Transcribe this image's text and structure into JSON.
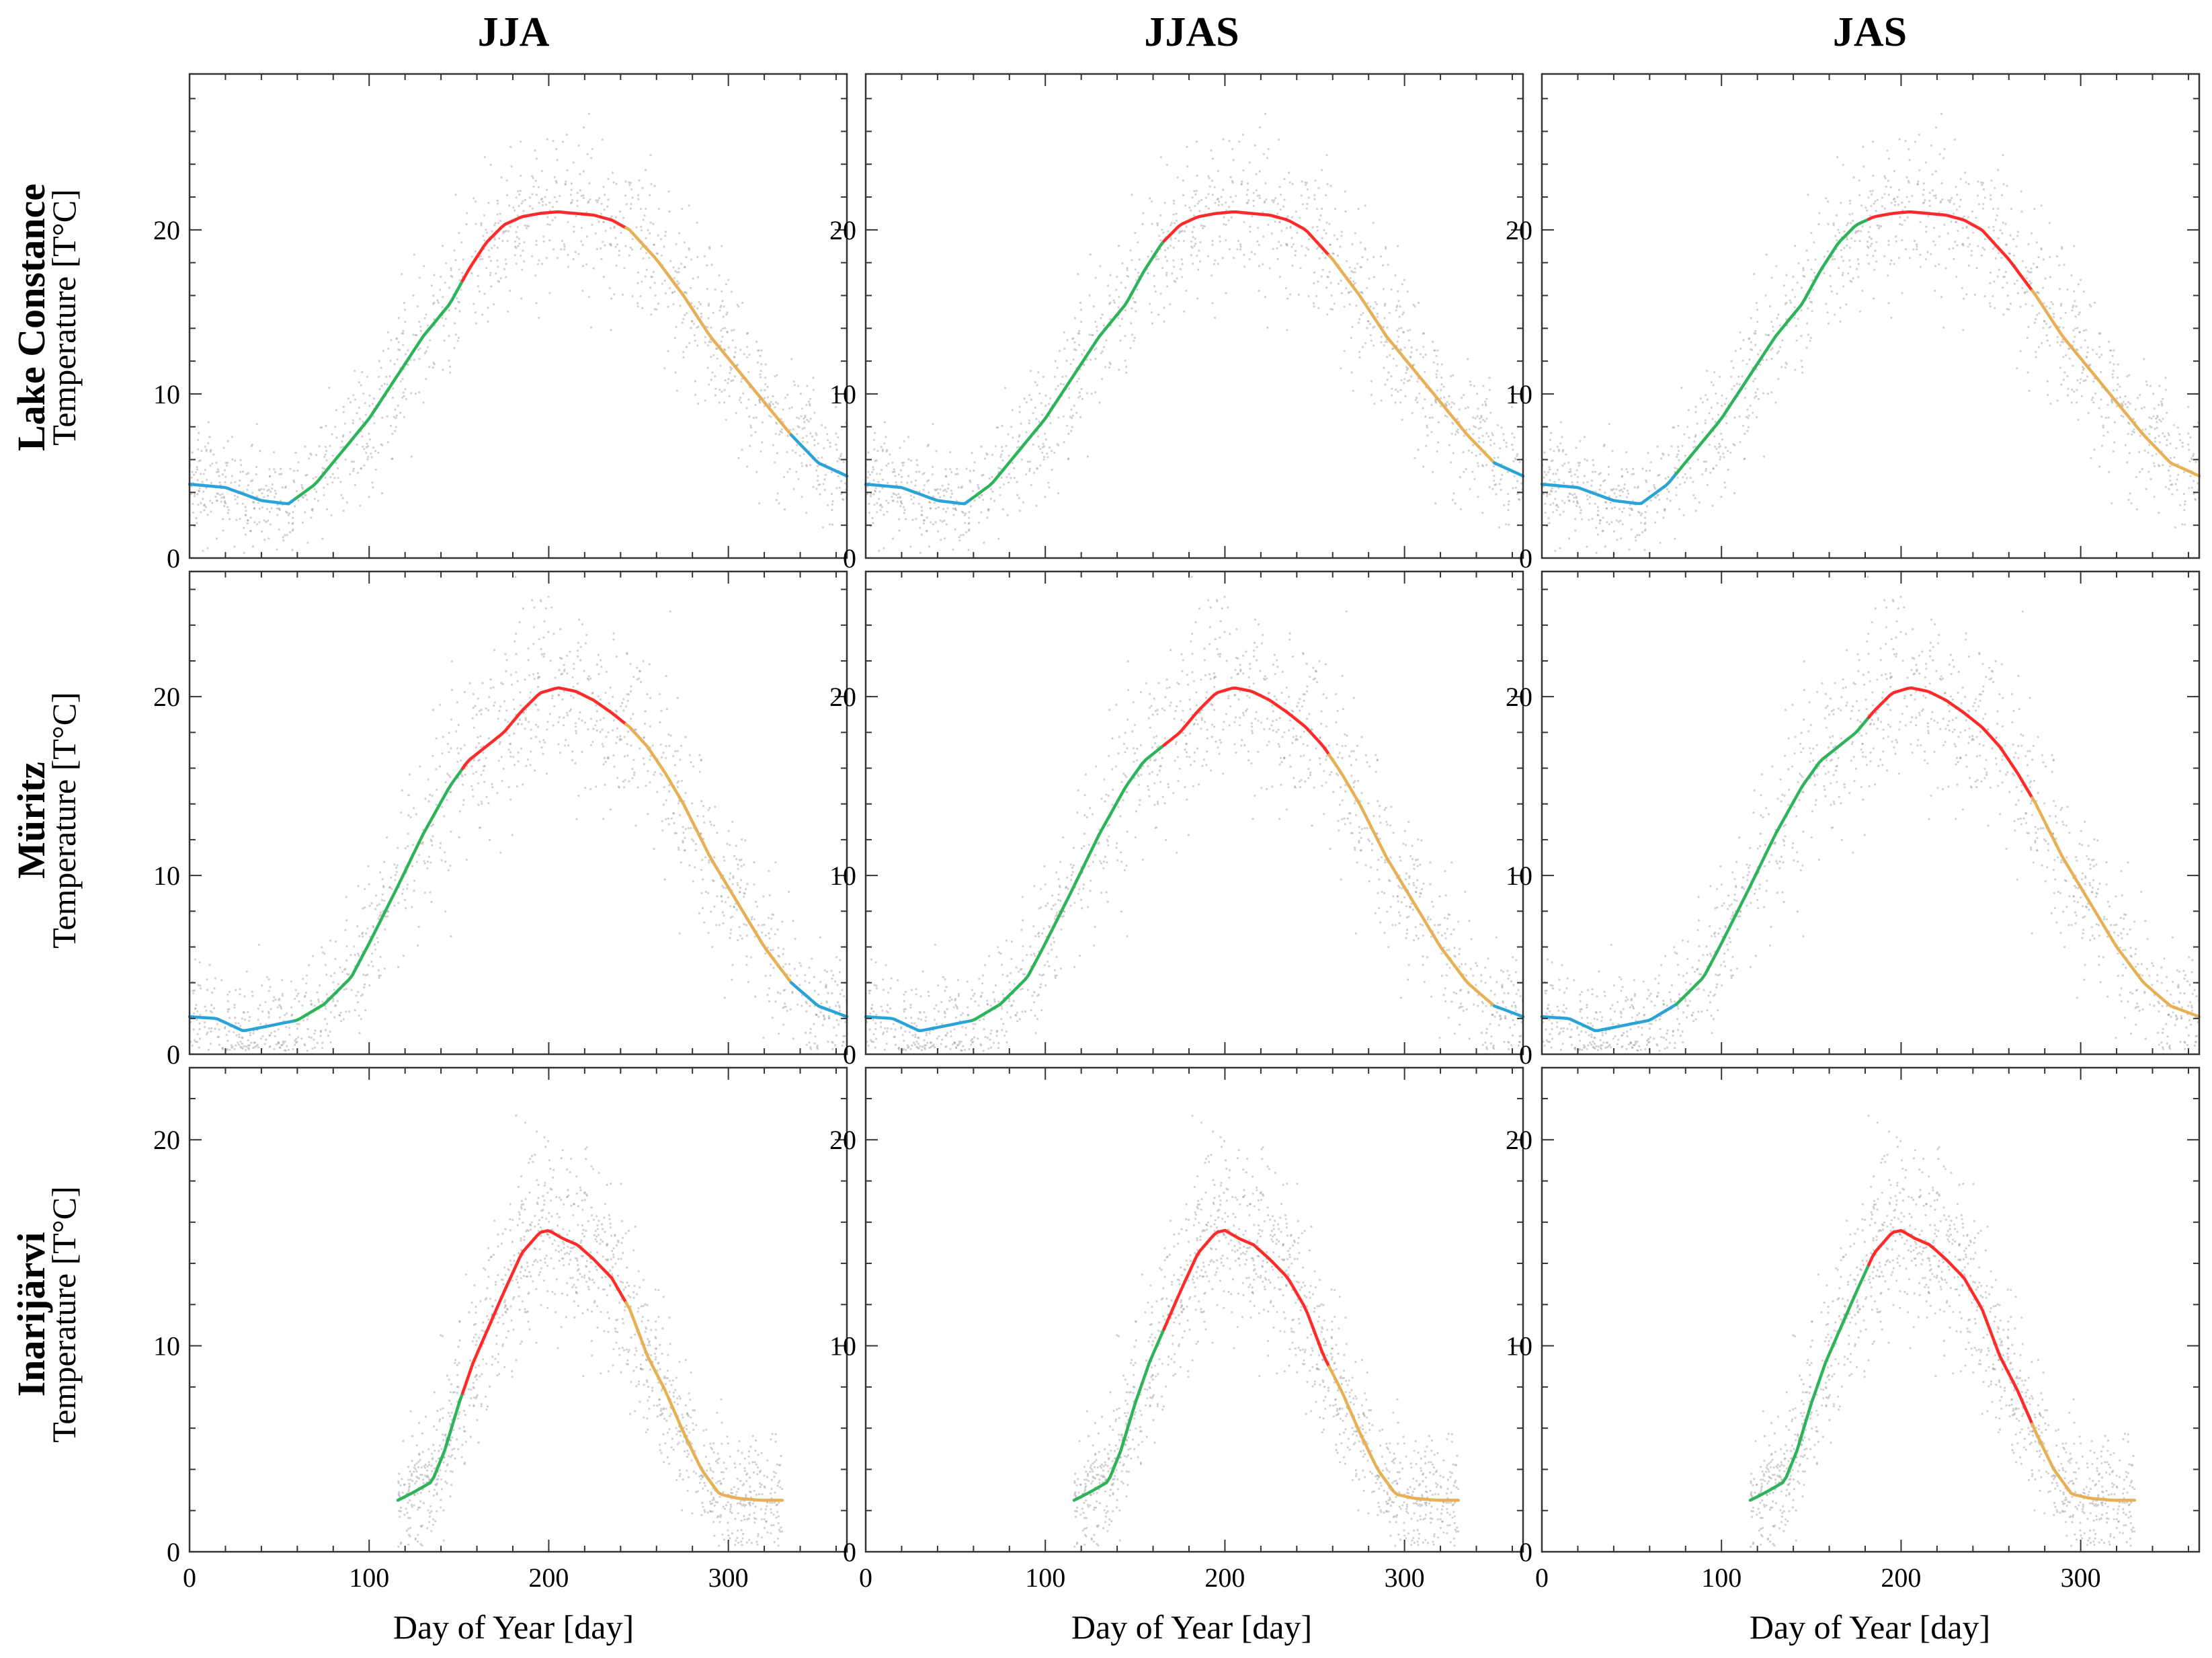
{
  "figure": {
    "column_titles": [
      "JJA",
      "JJAS",
      "JAS"
    ],
    "row_names": [
      "Lake Constance",
      "Müritz",
      "Inarijärvi"
    ],
    "ylabel": "Temperature [T°C]",
    "xlabel": "Day of Year [day]"
  },
  "colors": {
    "spring": "#2db35a",
    "summer": "#ff2a2a",
    "autumn": "#e8b055",
    "winter": "#2aa3d6",
    "scatter": "#9a9a9a"
  },
  "chart_data": {
    "type": "line",
    "note": "3x3 grid of panels: climatological daily lake temperature (scatter of observations in grey) with a smoothed curve colored by season; the summer (red) window differs per column.",
    "xlim": [
      0,
      366
    ],
    "xticks": [
      0,
      100,
      200,
      300
    ],
    "series_colors_by_season": [
      "winter",
      "spring",
      "summer",
      "autumn"
    ],
    "rows": [
      {
        "lake": "Lake Constance",
        "ylim": [
          0,
          29.5
        ],
        "yticks": [
          0,
          10,
          20
        ],
        "curve": {
          "x": [
            0,
            20,
            40,
            55,
            70,
            85,
            100,
            115,
            130,
            145,
            155,
            165,
            175,
            185,
            195,
            205,
            215,
            225,
            235,
            245,
            260,
            275,
            290,
            305,
            320,
            335,
            350,
            366
          ],
          "y": [
            4.5,
            4.3,
            3.5,
            3.3,
            4.5,
            6.5,
            8.5,
            11.0,
            13.5,
            15.5,
            17.5,
            19.2,
            20.3,
            20.8,
            21.0,
            21.1,
            21.0,
            20.9,
            20.6,
            20.0,
            18.2,
            16.0,
            13.5,
            11.5,
            9.5,
            7.5,
            5.8,
            5.0
          ]
        },
        "scatter_spread": 2.3
      },
      {
        "lake": "Müritz",
        "ylim": [
          0,
          27.0
        ],
        "yticks": [
          0,
          10,
          20
        ],
        "curve": {
          "x": [
            0,
            15,
            30,
            45,
            60,
            75,
            90,
            100,
            115,
            130,
            145,
            155,
            165,
            175,
            185,
            195,
            205,
            215,
            225,
            235,
            245,
            255,
            265,
            275,
            290,
            305,
            320,
            335,
            350,
            366
          ],
          "y": [
            2.1,
            2.0,
            1.3,
            1.6,
            1.9,
            2.8,
            4.3,
            6.2,
            9.2,
            12.3,
            15.0,
            16.4,
            17.2,
            18.0,
            19.2,
            20.2,
            20.5,
            20.3,
            19.8,
            19.1,
            18.3,
            17.2,
            15.7,
            14.0,
            11.0,
            8.5,
            6.0,
            4.0,
            2.7,
            2.1
          ]
        },
        "scatter_spread": 2.5
      },
      {
        "lake": "Inarijärvi",
        "ylim": [
          0,
          23.5
        ],
        "yticks": [
          0,
          10,
          20
        ],
        "curve": {
          "x": [
            116,
            125,
            135,
            142,
            150,
            158,
            166,
            175,
            185,
            195,
            200,
            208,
            216,
            225,
            235,
            245,
            255,
            265,
            275,
            285,
            295,
            305,
            318,
            330
          ],
          "y": [
            2.5,
            2.9,
            3.4,
            4.9,
            7.2,
            9.2,
            10.8,
            12.6,
            14.5,
            15.5,
            15.6,
            15.2,
            14.9,
            14.2,
            13.3,
            11.8,
            9.5,
            7.8,
            5.8,
            4.0,
            2.8,
            2.6,
            2.5,
            2.5
          ]
        },
        "scatter_spread": 2.2
      }
    ],
    "columns": [
      {
        "title": "JJA",
        "season_bounds": [
          {
            "season": "winter",
            "from": 0,
            "to": 59
          },
          {
            "season": "spring",
            "from": 59,
            "to": 152
          },
          {
            "season": "summer",
            "from": 152,
            "to": 243
          },
          {
            "season": "autumn",
            "from": 243,
            "to": 335
          },
          {
            "season": "winter",
            "from": 335,
            "to": 366
          }
        ]
      },
      {
        "title": "JJAS",
        "season_bounds": [
          {
            "season": "winter",
            "from": 0,
            "to": 59
          },
          {
            "season": "spring",
            "from": 59,
            "to": 166
          },
          {
            "season": "summer",
            "from": 166,
            "to": 258
          },
          {
            "season": "autumn",
            "from": 258,
            "to": 350
          },
          {
            "season": "winter",
            "from": 350,
            "to": 366
          }
        ]
      },
      {
        "title": "JAS",
        "season_bounds": [
          {
            "season": "winter",
            "from": 0,
            "to": 75
          },
          {
            "season": "spring",
            "from": 75,
            "to": 182
          },
          {
            "season": "summer",
            "from": 182,
            "to": 273
          },
          {
            "season": "autumn",
            "from": 273,
            "to": 366
          }
        ]
      }
    ]
  }
}
